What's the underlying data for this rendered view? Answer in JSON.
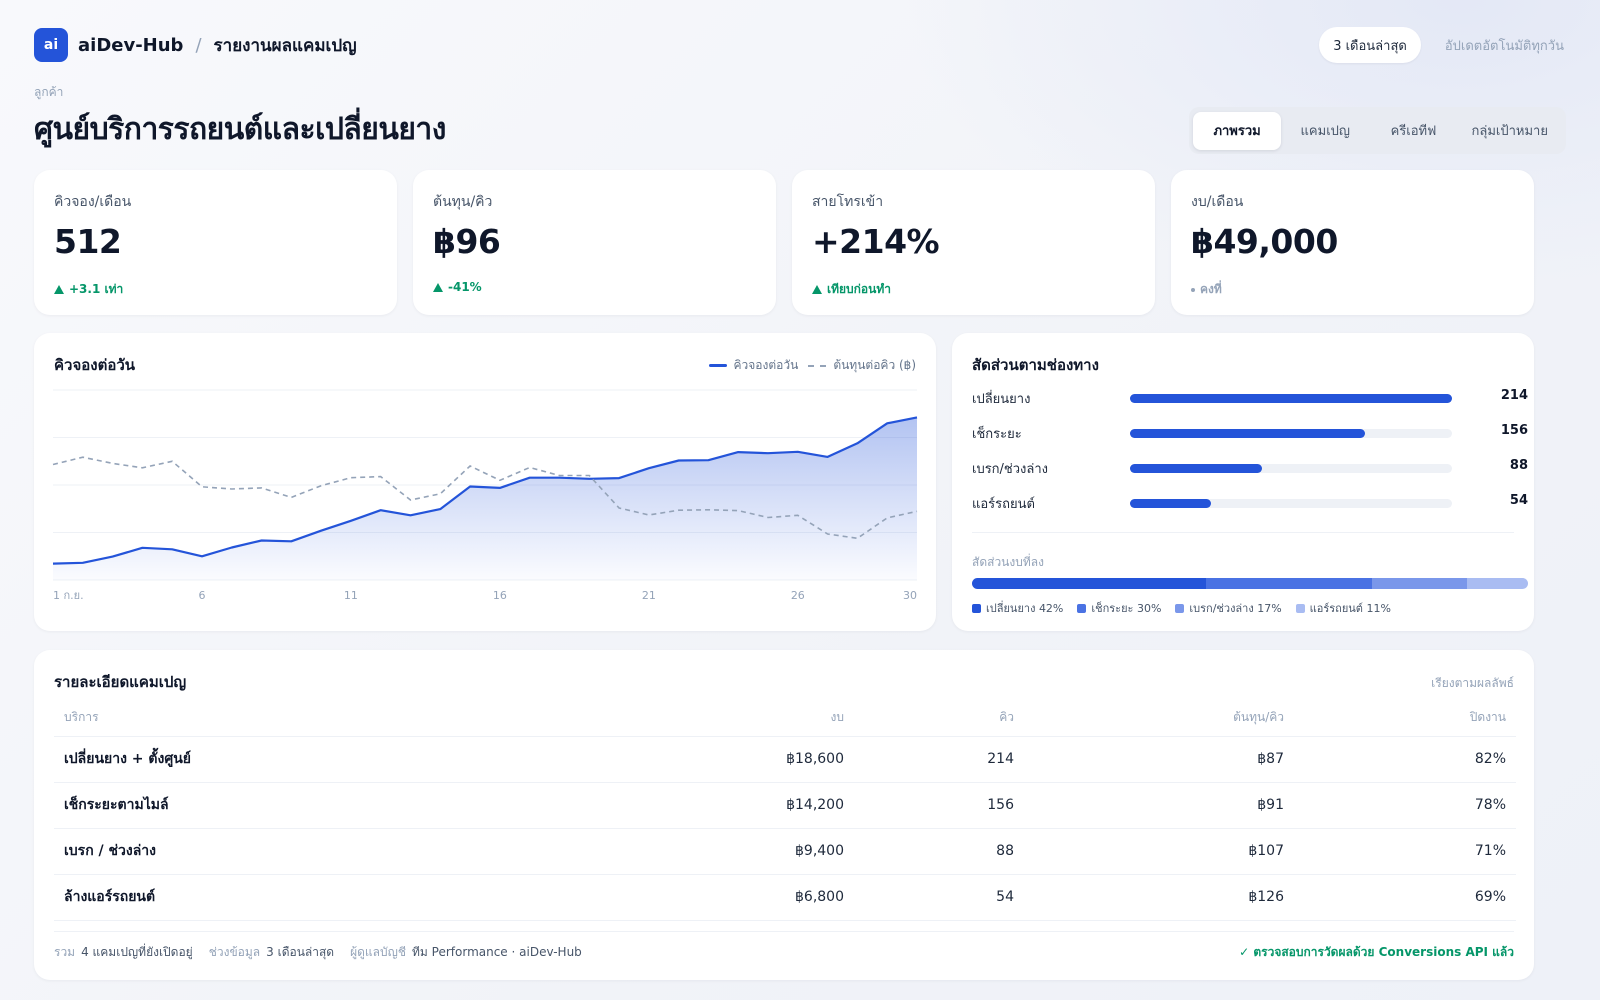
{
  "header": {
    "logo_text": "ai",
    "brand": "aiDev-Hub",
    "separator": "/",
    "page": "รายงานผลแคมเปญ",
    "range": "3 เดือนล่าสุด",
    "auto_update": "อัปเดตอัตโนมัติทุกวัน"
  },
  "client": {
    "label": "ลูกค้า",
    "name": "ศูนย์บริการรถยนต์และเปลี่ยนยาง"
  },
  "tabs": [
    {
      "label": "ภาพรวม",
      "active": true
    },
    {
      "label": "แคมเปญ",
      "active": false
    },
    {
      "label": "ครีเอทีฟ",
      "active": false
    },
    {
      "label": "กลุ่มเป้าหมาย",
      "active": false
    }
  ],
  "kpis": [
    {
      "label": "คิวจอง/เดือน",
      "value": "512",
      "delta": "+3.1 เท่า",
      "trend": "up"
    },
    {
      "label": "ต้นทุน/คิว",
      "value": "฿96",
      "delta": "-41%",
      "trend": "up"
    },
    {
      "label": "สายโทรเข้า",
      "value": "+214%",
      "delta": "เทียบก่อนทำ",
      "trend": "up"
    },
    {
      "label": "งบ/เดือน",
      "value": "฿49,000",
      "delta": "คงที่",
      "trend": "neutral"
    }
  ],
  "chart_card": {
    "title": "คิวจองต่อวัน",
    "legend_primary": "คิวจองต่อวัน",
    "legend_secondary": "ต้นทุนต่อคิว (฿)"
  },
  "chart_data": {
    "type": "line",
    "x": [
      1,
      2,
      3,
      4,
      5,
      6,
      7,
      8,
      9,
      10,
      11,
      12,
      13,
      14,
      15,
      16,
      17,
      18,
      19,
      20,
      21,
      22,
      23,
      24,
      25,
      26,
      27,
      28,
      29,
      30
    ],
    "x_tick_labels": [
      "1 ก.ย.",
      "6",
      "11",
      "16",
      "21",
      "26",
      "30"
    ],
    "x_tick_positions": [
      1,
      6,
      11,
      16,
      21,
      26,
      30
    ],
    "grid": true,
    "series": [
      {
        "name": "คิวจองต่อวัน",
        "style": "solid-area",
        "color": "#2454d9",
        "values": [
          4.5,
          4.7,
          6.4,
          8.8,
          8.4,
          6.5,
          8.9,
          10.8,
          10.6,
          13.5,
          16.2,
          19.1,
          17.7,
          19.4,
          25.6,
          25.2,
          28.0,
          28.0,
          27.7,
          27.9,
          30.6,
          32.7,
          32.8,
          35.0,
          34.7,
          35.1,
          33.7,
          37.4,
          42.9,
          44.5
        ]
      },
      {
        "name": "ต้นทุนต่อคิว (฿)",
        "style": "dashed",
        "color": "#94a3b8",
        "values": [
          31.6,
          33.6,
          31.9,
          30.7,
          32.5,
          25.5,
          24.9,
          25.2,
          22.6,
          25.8,
          28.0,
          28.3,
          21.9,
          23.6,
          31.2,
          27.3,
          30.8,
          28.6,
          28.6,
          19.7,
          17.8,
          19.1,
          19.2,
          19.0,
          17.1,
          17.7,
          12.6,
          11.4,
          17.0,
          18.8
        ]
      }
    ],
    "ylim": [
      0,
      52
    ]
  },
  "channels": {
    "title": "สัดส่วนตามช่องทาง",
    "items": [
      {
        "name": "เปลี่ยนยาง",
        "value": "214",
        "fraction": 1.0,
        "color": "#2454d9"
      },
      {
        "name": "เช็กระยะ",
        "value": "156",
        "fraction": 0.73,
        "color": "#2454d9"
      },
      {
        "name": "เบรก/ช่วงล่าง",
        "value": "88",
        "fraction": 0.41,
        "color": "#2454d9"
      },
      {
        "name": "แอร์รถยนต์",
        "value": "54",
        "fraction": 0.25,
        "color": "#2454d9"
      }
    ],
    "split_label": "สัดส่วนงบที่ลง",
    "split": [
      {
        "label": "เปลี่ยนยาง 42%",
        "percent": 42,
        "color": "#2454d9"
      },
      {
        "label": "เช็กระยะ 30%",
        "percent": 30,
        "color": "#4a72e3"
      },
      {
        "label": "เบรก/ช่วงล่าง 17%",
        "percent": 17,
        "color": "#7a97ea"
      },
      {
        "label": "แอร์รถยนต์ 11%",
        "percent": 11,
        "color": "#a9bcf2"
      }
    ]
  },
  "campaigns": {
    "title": "รายละเอียดแคมเปญ",
    "sort_label": "เรียงตามผลลัพธ์",
    "columns": [
      "บริการ",
      "งบ",
      "คิว",
      "ต้นทุน/คิว",
      "ปิดงาน"
    ],
    "rows": [
      [
        "เปลี่ยนยาง + ตั้งศูนย์",
        "฿18,600",
        "214",
        "฿87",
        "82%"
      ],
      [
        "เช็กระยะตามไมล์",
        "฿14,200",
        "156",
        "฿91",
        "78%"
      ],
      [
        "เบรก / ช่วงล่าง",
        "฿9,400",
        "88",
        "฿107",
        "71%"
      ],
      [
        "ล้างแอร์รถยนต์",
        "฿6,800",
        "54",
        "฿126",
        "69%"
      ]
    ],
    "footer": {
      "total_key": "รวม",
      "total_value": "4 แคมเปญที่ยังเปิดอยู่",
      "range_key": "ช่วงข้อมูล",
      "range_value": "3 เดือนล่าสุด",
      "owner_key": "ผู้ดูแลบัญชี",
      "owner_value": "ทีม Performance · aiDev-Hub",
      "verified": "✓ ตรวจสอบการวัดผลด้วย Conversions API แล้ว"
    }
  }
}
